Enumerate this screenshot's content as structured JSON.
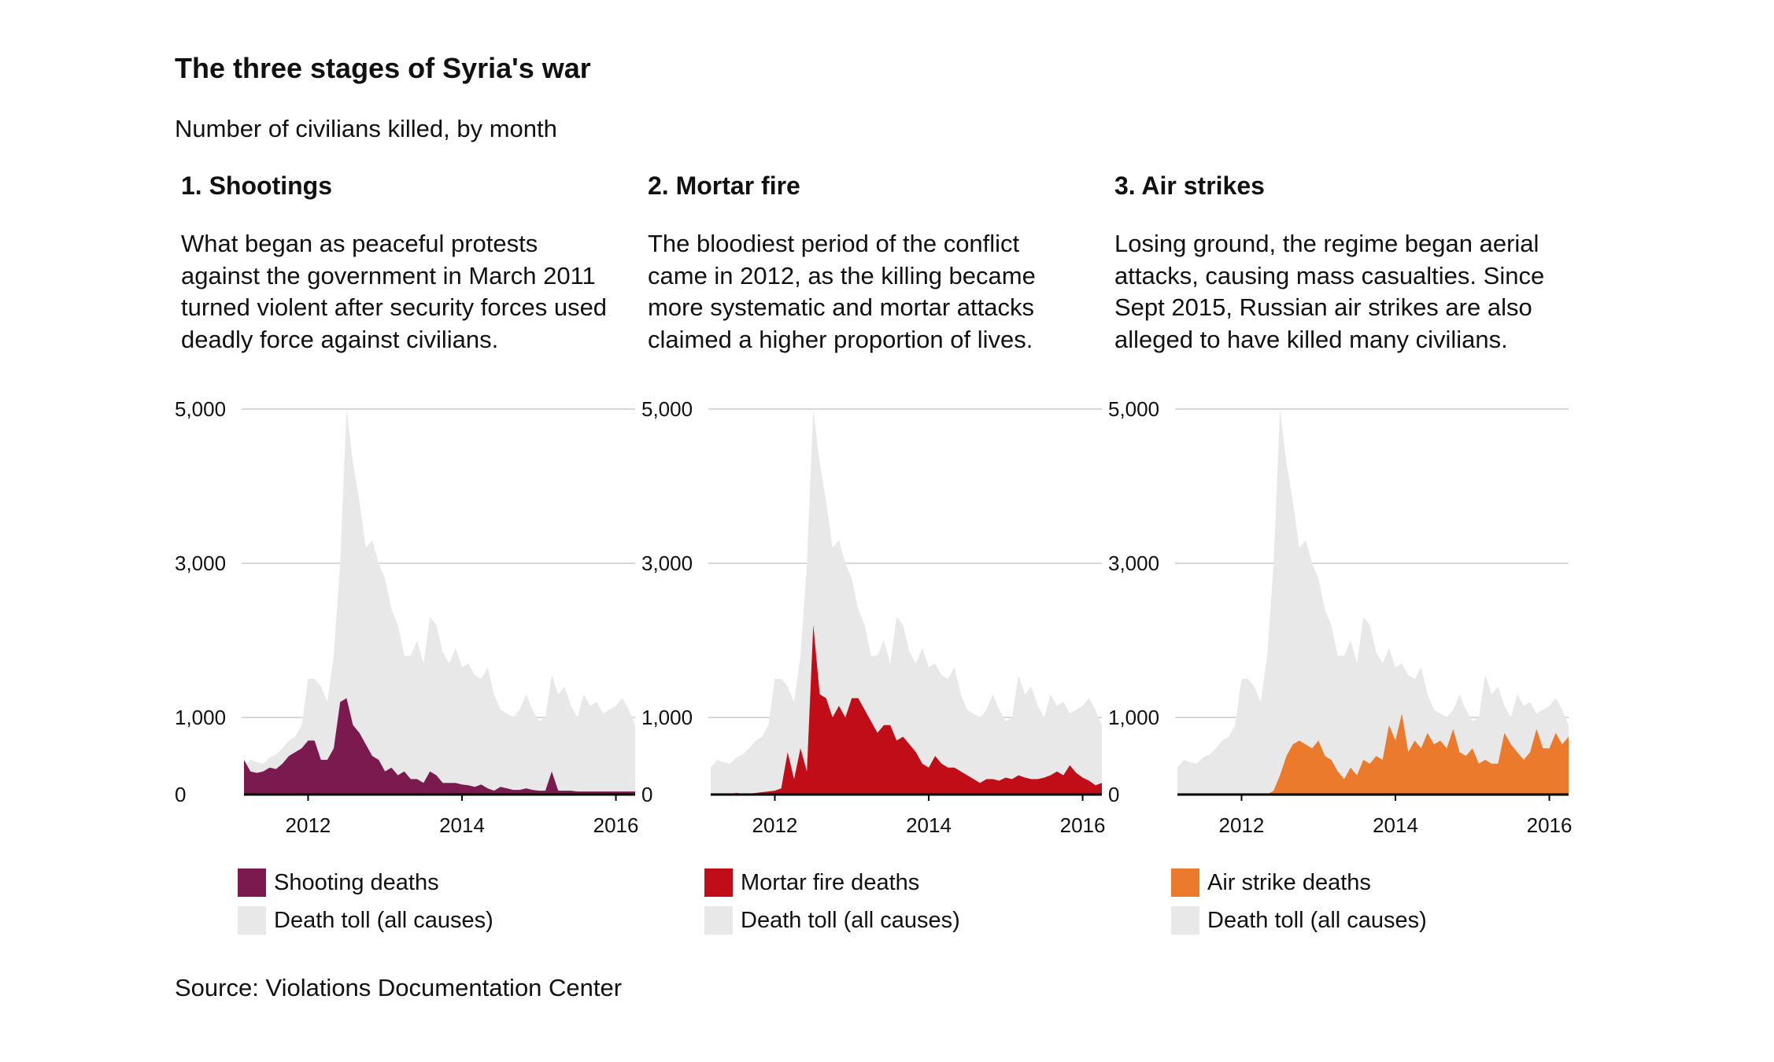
{
  "title": "The three stages of Syria's war",
  "subtitle": "Number of civilians killed, by month",
  "source": "Source: Violations Documentation Center",
  "colors": {
    "total": "#e8e8e8",
    "gridline": "#cccccc",
    "baseline": "#000000"
  },
  "panels": [
    {
      "heading": "1. Shootings",
      "description": [
        "What began as peaceful protests",
        "against the government in March 2011",
        "turned violent after security forces used",
        "deadly force against civilians."
      ],
      "series_label": "Shooting deaths",
      "series_color": "#7b1a4f",
      "total_label": "Death toll (all causes)"
    },
    {
      "heading": "2. Mortar fire",
      "description": [
        "The bloodiest period of the conflict",
        "came in 2012, as the killing became",
        "more systematic and mortar attacks",
        "claimed a higher proportion of lives."
      ],
      "series_label": "Mortar fire deaths",
      "series_color": "#c00d17",
      "total_label": "Death toll (all causes)"
    },
    {
      "heading": "3. Air strikes",
      "description": [
        "Losing ground, the regime began aerial",
        "attacks, causing mass casualties. Since",
        "Sept 2015, Russian air strikes are also",
        "alleged to have killed many civilians."
      ],
      "series_label": "Air strike deaths",
      "series_color": "#ec7a2c",
      "total_label": "Death toll (all causes)"
    }
  ],
  "chart_data": {
    "type": "area",
    "x_start": "2011-03",
    "x_end": "2016-04",
    "y_ticks": [
      0,
      1000,
      3000,
      5000
    ],
    "y_tick_labels": [
      "0",
      "1,000",
      "3,000",
      "5,000"
    ],
    "x_ticks": [
      2012,
      2014,
      2016
    ],
    "x_tick_labels": [
      "2012",
      "2014",
      "2016"
    ],
    "ylim": [
      0,
      5000
    ],
    "grid": true,
    "total_series": {
      "name": "Death toll (all causes)",
      "values": [
        350,
        450,
        420,
        400,
        480,
        520,
        600,
        700,
        750,
        900,
        1500,
        1500,
        1400,
        1200,
        1800,
        3000,
        5000,
        4300,
        3800,
        3200,
        3300,
        3000,
        2800,
        2400,
        2200,
        1800,
        1800,
        2000,
        1700,
        2300,
        2200,
        1850,
        1700,
        1900,
        1650,
        1700,
        1550,
        1500,
        1650,
        1300,
        1100,
        1050,
        1000,
        1100,
        1300,
        1100,
        950,
        1000,
        1550,
        1300,
        1400,
        1150,
        1000,
        1300,
        1150,
        1200,
        1050,
        1100,
        1150,
        1250,
        1100,
        900
      ]
    },
    "series": [
      {
        "name": "Shooting deaths",
        "values": [
          450,
          300,
          280,
          300,
          350,
          330,
          400,
          500,
          550,
          600,
          700,
          700,
          450,
          450,
          600,
          1200,
          1250,
          900,
          800,
          650,
          500,
          450,
          300,
          350,
          250,
          300,
          200,
          200,
          150,
          300,
          250,
          150,
          150,
          150,
          130,
          120,
          100,
          130,
          80,
          50,
          100,
          80,
          60,
          60,
          80,
          60,
          50,
          50,
          300,
          50,
          50,
          50,
          40,
          40,
          40,
          40,
          40,
          40,
          40,
          40,
          40,
          40
        ]
      },
      {
        "name": "Mortar fire deaths",
        "values": [
          0,
          10,
          10,
          10,
          20,
          10,
          10,
          20,
          30,
          40,
          50,
          80,
          550,
          200,
          600,
          300,
          2200,
          1300,
          1250,
          1000,
          1150,
          1000,
          1250,
          1250,
          1100,
          950,
          800,
          900,
          900,
          700,
          750,
          650,
          550,
          400,
          350,
          500,
          400,
          350,
          350,
          300,
          250,
          200,
          150,
          200,
          200,
          180,
          220,
          200,
          250,
          220,
          200,
          200,
          220,
          250,
          300,
          250,
          380,
          280,
          220,
          180,
          120,
          150
        ]
      },
      {
        "name": "Air strike deaths",
        "values": [
          0,
          0,
          0,
          0,
          0,
          0,
          0,
          0,
          0,
          0,
          0,
          0,
          0,
          0,
          0,
          50,
          250,
          500,
          650,
          700,
          650,
          600,
          700,
          500,
          450,
          300,
          200,
          350,
          250,
          450,
          400,
          500,
          450,
          900,
          700,
          1050,
          550,
          700,
          600,
          800,
          650,
          700,
          600,
          850,
          550,
          500,
          600,
          400,
          450,
          400,
          400,
          800,
          650,
          550,
          450,
          550,
          850,
          600,
          600,
          800,
          650,
          750
        ]
      }
    ]
  }
}
